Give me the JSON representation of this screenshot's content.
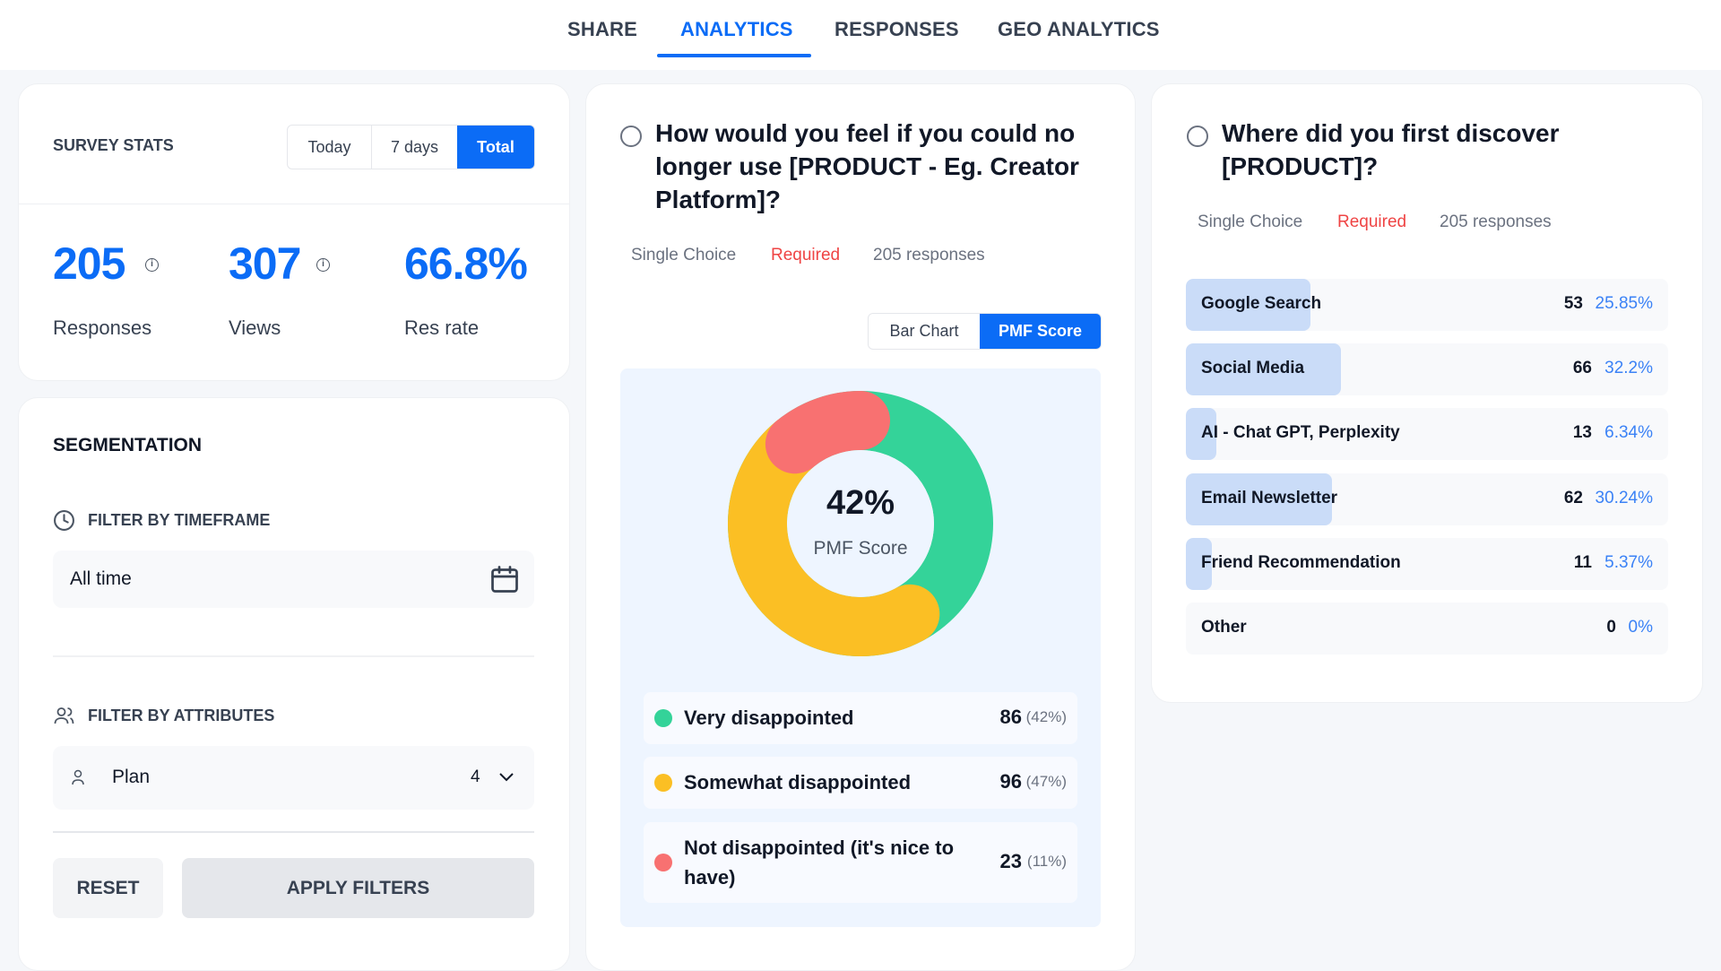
{
  "tabs": [
    {
      "label": "SHARE"
    },
    {
      "label": "ANALYTICS",
      "active": true
    },
    {
      "label": "RESPONSES"
    },
    {
      "label": "GEO ANALYTICS"
    }
  ],
  "stats": {
    "title": "SURVEY STATS",
    "ranges": [
      "Today",
      "7 days",
      "Total"
    ],
    "selected_range": "Total",
    "responses": {
      "value": "205",
      "label": "Responses"
    },
    "views": {
      "value": "307",
      "label": "Views"
    },
    "rate": {
      "value": "66.8%",
      "label": "Res rate"
    }
  },
  "segmentation": {
    "title": "SEGMENTATION",
    "timeframe_label": "FILTER BY TIMEFRAME",
    "timeframe_value": "All time",
    "attributes_label": "FILTER BY ATTRIBUTES",
    "attribute": {
      "name": "Plan",
      "count": "4"
    },
    "reset": "RESET",
    "apply": "APPLY FILTERS"
  },
  "pmf": {
    "question": "How would you feel if you could no longer use [PRODUCT - Eg. Creator Platform]?",
    "type": "Single Choice",
    "required": "Required",
    "responses": "205 responses",
    "views": [
      "Bar Chart",
      "PMF Score"
    ],
    "selected_view": "PMF Score",
    "score": "42%",
    "score_label": "PMF Score",
    "colors": {
      "very": "#34d399",
      "somewhat": "#fbbf24",
      "not": "#f87171"
    },
    "options": [
      {
        "label": "Very disappointed",
        "count": "86",
        "pct": "(42%)",
        "value": 42,
        "color": "#34d399"
      },
      {
        "label": "Somewhat disappointed",
        "count": "96",
        "pct": "(47%)",
        "value": 47,
        "color": "#fbbf24"
      },
      {
        "label": "Not disappointed (it's nice to have)",
        "count": "23",
        "pct": "(11%)",
        "value": 11,
        "color": "#f87171"
      }
    ]
  },
  "discover": {
    "question": "Where did you first discover [PRODUCT]?",
    "type": "Single Choice",
    "required": "Required",
    "responses": "205 responses",
    "options": [
      {
        "label": "Google Search",
        "count": "53",
        "pct": "25.85%",
        "value": 25.85
      },
      {
        "label": "Social Media",
        "count": "66",
        "pct": "32.2%",
        "value": 32.2
      },
      {
        "label": "AI - Chat GPT, Perplexity",
        "count": "13",
        "pct": "6.34%",
        "value": 6.34
      },
      {
        "label": "Email Newsletter",
        "count": "62",
        "pct": "30.24%",
        "value": 30.24
      },
      {
        "label": "Friend Recommendation",
        "count": "11",
        "pct": "5.37%",
        "value": 5.37
      },
      {
        "label": "Other",
        "count": "0",
        "pct": "0%",
        "value": 0
      }
    ]
  }
}
